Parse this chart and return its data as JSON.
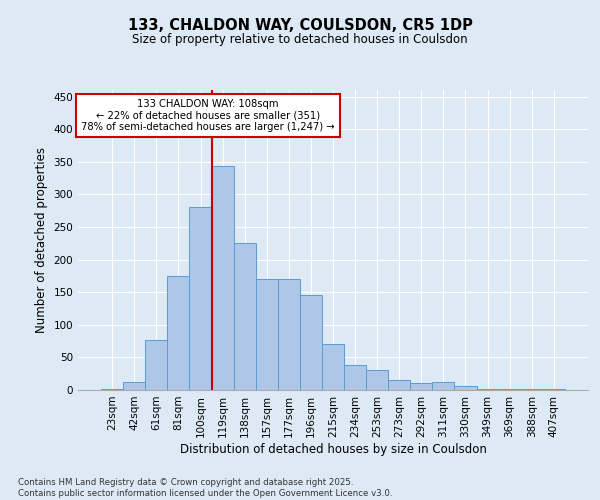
{
  "title": "133, CHALDON WAY, COULSDON, CR5 1DP",
  "subtitle": "Size of property relative to detached houses in Coulsdon",
  "xlabel": "Distribution of detached houses by size in Coulsdon",
  "ylabel": "Number of detached properties",
  "categories": [
    "23sqm",
    "42sqm",
    "61sqm",
    "81sqm",
    "100sqm",
    "119sqm",
    "138sqm",
    "157sqm",
    "177sqm",
    "196sqm",
    "215sqm",
    "234sqm",
    "253sqm",
    "273sqm",
    "292sqm",
    "311sqm",
    "330sqm",
    "349sqm",
    "369sqm",
    "388sqm",
    "407sqm"
  ],
  "values": [
    2,
    12,
    76,
    175,
    280,
    344,
    225,
    170,
    170,
    145,
    70,
    38,
    30,
    15,
    11,
    12,
    6,
    1,
    1,
    1,
    1
  ],
  "bar_color": "#aec6e8",
  "bar_edge_color": "#5b9bd5",
  "annotation_text_line1": "133 CHALDON WAY: 108sqm",
  "annotation_text_line2": "← 22% of detached houses are smaller (351)",
  "annotation_text_line3": "78% of semi-detached houses are larger (1,247) →",
  "annotation_box_color": "#ffffff",
  "annotation_box_edge": "#cc0000",
  "vline_color": "#cc0000",
  "vline_x": 4.5,
  "ylim": [
    0,
    460
  ],
  "yticks": [
    0,
    50,
    100,
    150,
    200,
    250,
    300,
    350,
    400,
    450
  ],
  "bg_color": "#ddeaf6",
  "plot_bg_color": "#ddeaf6",
  "footer_line1": "Contains HM Land Registry data © Crown copyright and database right 2025.",
  "footer_line2": "Contains public sector information licensed under the Open Government Licence v3.0."
}
